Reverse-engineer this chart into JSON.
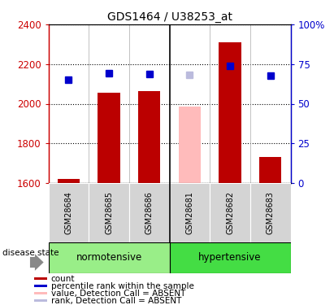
{
  "title": "GDS1464 / U38253_at",
  "samples": [
    "GSM28684",
    "GSM28685",
    "GSM28686",
    "GSM28681",
    "GSM28682",
    "GSM28683"
  ],
  "bar_values": [
    1620,
    2055,
    2062,
    1985,
    2310,
    1730
  ],
  "bar_colors": [
    "#bb0000",
    "#bb0000",
    "#bb0000",
    "#ffbbbb",
    "#bb0000",
    "#bb0000"
  ],
  "blue_dot_values": [
    2120,
    2155,
    2150,
    2145,
    2190,
    2140
  ],
  "blue_dot_colors": [
    "#0000cc",
    "#0000cc",
    "#0000cc",
    "#bbbbdd",
    "#0000cc",
    "#0000cc"
  ],
  "ylim_left": [
    1600,
    2400
  ],
  "yticks_left": [
    1600,
    1800,
    2000,
    2200,
    2400
  ],
  "yticks_right": [
    0,
    25,
    50,
    75,
    100
  ],
  "ytick_labels_right": [
    "0",
    "25",
    "50",
    "75",
    "100%"
  ],
  "left_axis_color": "#cc0000",
  "right_axis_color": "#0000cc",
  "norm_color": "#99ee88",
  "hyper_color": "#44dd44",
  "legend_items": [
    {
      "label": "count",
      "color": "#bb0000"
    },
    {
      "label": "percentile rank within the sample",
      "color": "#0000cc"
    },
    {
      "label": "value, Detection Call = ABSENT",
      "color": "#ffbbbb"
    },
    {
      "label": "rank, Detection Call = ABSENT",
      "color": "#bbbbdd"
    }
  ]
}
